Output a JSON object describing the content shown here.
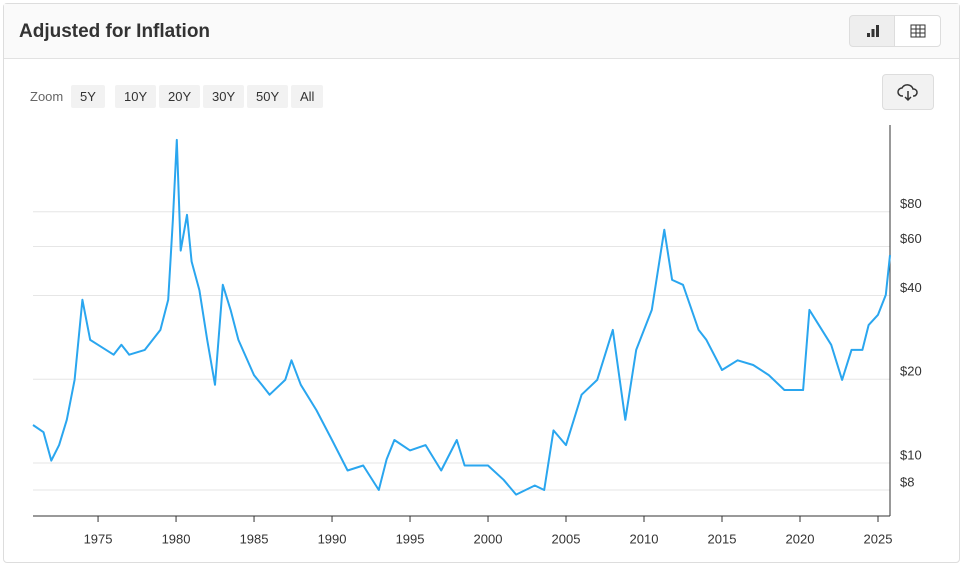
{
  "header": {
    "title": "Adjusted for Inflation"
  },
  "zoom": {
    "label": "Zoom",
    "options": [
      "5Y",
      "10Y",
      "20Y",
      "30Y",
      "50Y",
      "All"
    ]
  },
  "chart_data": {
    "type": "line",
    "log_scale": true,
    "grid": true,
    "color": "#2aa6ef",
    "x": [
      1970.83,
      1971.5,
      1972,
      1972.5,
      1973,
      1973.5,
      1974,
      1974.5,
      1975,
      1976,
      1976.5,
      1977,
      1978,
      1979,
      1979.5,
      1979.8,
      1980.05,
      1980.3,
      1980.7,
      1981,
      1981.5,
      1982,
      1982.5,
      1983,
      1983.5,
      1984,
      1985,
      1985.5,
      1986,
      1987,
      1987.4,
      1988,
      1989,
      1990,
      1991,
      1992,
      1993,
      1993.5,
      1994,
      1995,
      1996,
      1997,
      1998,
      1998.5,
      1999,
      2000,
      2001,
      2001.8,
      2003,
      2003.6,
      2004.2,
      2005,
      2006,
      2007,
      2008,
      2008.8,
      2009.5,
      2010.5,
      2011.3,
      2011.8,
      2012.5,
      2013.5,
      2014,
      2015,
      2016,
      2017,
      2018,
      2019,
      2020.2,
      2020.6,
      2021,
      2022,
      2022.7,
      2023.3,
      2024,
      2024.4,
      2025,
      2025.5,
      2025.77
    ],
    "values": [
      13.7,
      12.9,
      10.2,
      11.6,
      14.3,
      19.9,
      38.6,
      27.7,
      26.6,
      24.5,
      26.6,
      24.5,
      25.5,
      30.1,
      38.6,
      75,
      145,
      58,
      78,
      53,
      41.8,
      27.7,
      19.1,
      43.7,
      35.5,
      27.7,
      20.7,
      19.1,
      17.6,
      19.9,
      23.4,
      19.1,
      15.5,
      12.1,
      9.4,
      9.8,
      8.0,
      10.3,
      12.1,
      11.1,
      11.6,
      9.4,
      12.1,
      9.8,
      9.8,
      9.8,
      8.7,
      7.7,
      8.3,
      8.0,
      13.1,
      11.6,
      17.6,
      19.9,
      30.1,
      14.3,
      25.5,
      35.5,
      68.9,
      45.5,
      43.7,
      30.1,
      27.7,
      21.6,
      23.4,
      22.5,
      20.7,
      18.3,
      18.3,
      35.5,
      32.7,
      26.6,
      19.9,
      25.5,
      25.5,
      31.3,
      34.1,
      40.2,
      55.9
    ],
    "xlim": [
      1970.83,
      2025.77
    ],
    "xticks": [
      1975,
      1980,
      1985,
      1990,
      1995,
      2000,
      2005,
      2010,
      2015,
      2020,
      2025
    ],
    "ylim": [
      6.45,
      164
    ],
    "yticks": [
      {
        "value": 8,
        "label": "$8"
      },
      {
        "value": 10,
        "label": "$10"
      },
      {
        "value": 20,
        "label": "$20"
      },
      {
        "value": 40,
        "label": "$40"
      },
      {
        "value": 60,
        "label": "$60"
      },
      {
        "value": 80,
        "label": "$80"
      }
    ]
  }
}
